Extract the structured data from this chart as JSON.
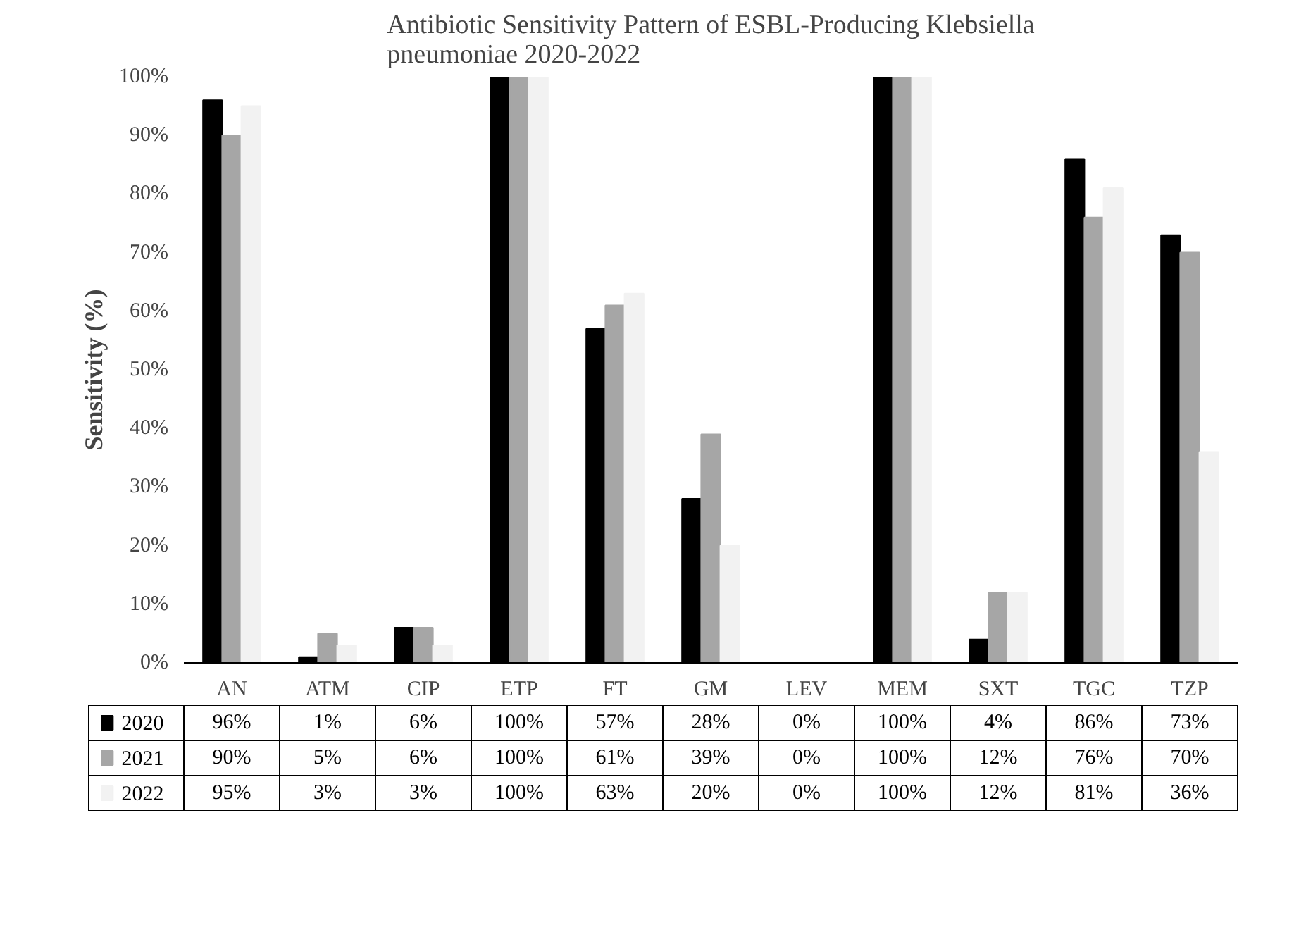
{
  "chart_data": {
    "type": "bar",
    "title": "Antibiotic Sensitivity Pattern of ESBL-Producing Klebsiella pneumoniae 2020-2022",
    "ylabel": "Sensitivity (%)",
    "categories": [
      "AN",
      "ATM",
      "CIP",
      "ETP",
      "FT",
      "GM",
      "LEV",
      "MEM",
      "SXT",
      "TGC",
      "TZP"
    ],
    "series": [
      {
        "name": "2020",
        "color": "#000000",
        "values": [
          96,
          1,
          6,
          100,
          57,
          28,
          0,
          100,
          4,
          86,
          73
        ],
        "value_labels": [
          "96%",
          "1%",
          "6%",
          "100%",
          "57%",
          "28%",
          "0%",
          "100%",
          "4%",
          "86%",
          "73%"
        ]
      },
      {
        "name": "2021",
        "color": "#a6a6a6",
        "values": [
          90,
          5,
          6,
          100,
          61,
          39,
          0,
          100,
          12,
          76,
          70
        ],
        "value_labels": [
          "90%",
          "5%",
          "6%",
          "100%",
          "61%",
          "39%",
          "0%",
          "100%",
          "12%",
          "76%",
          "70%"
        ]
      },
      {
        "name": "2022",
        "color": "#f2f2f2",
        "values": [
          95,
          3,
          3,
          100,
          63,
          20,
          0,
          100,
          12,
          81,
          36
        ],
        "value_labels": [
          "95%",
          "3%",
          "3%",
          "100%",
          "63%",
          "20%",
          "0%",
          "100%",
          "12%",
          "81%",
          "36%"
        ]
      }
    ],
    "ylim": [
      0,
      100
    ],
    "yticks": [
      {
        "value": 0,
        "label": "0%"
      },
      {
        "value": 10,
        "label": "10%"
      },
      {
        "value": 20,
        "label": "20%"
      },
      {
        "value": 30,
        "label": "30%"
      },
      {
        "value": 40,
        "label": "40%"
      },
      {
        "value": 50,
        "label": "50%"
      },
      {
        "value": 60,
        "label": "60%"
      },
      {
        "value": 70,
        "label": "70%"
      },
      {
        "value": 80,
        "label": "80%"
      },
      {
        "value": 90,
        "label": "90%"
      },
      {
        "value": 100,
        "label": "100%"
      }
    ],
    "grid": false,
    "legend": "bottom"
  }
}
